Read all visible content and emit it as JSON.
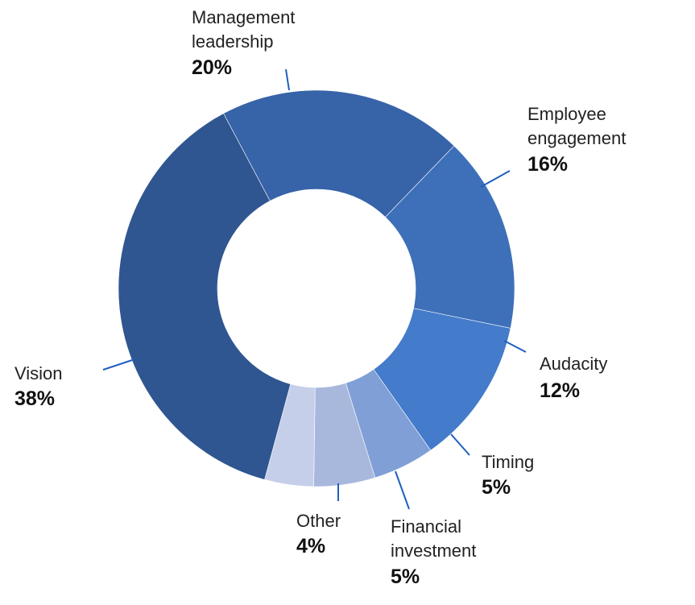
{
  "chart_data": {
    "type": "pie",
    "donut": true,
    "title": "",
    "legend": "none",
    "slices": [
      {
        "label_lines": [
          "Management",
          "leadership"
        ],
        "value": 20,
        "value_label": "20%",
        "color": "#3763a8"
      },
      {
        "label_lines": [
          "Employee",
          "engagement"
        ],
        "value": 16,
        "value_label": "16%",
        "color": "#3d70b8"
      },
      {
        "label_lines": [
          "Audacity"
        ],
        "value": 12,
        "value_label": "12%",
        "color": "#447bca"
      },
      {
        "label_lines": [
          "Timing"
        ],
        "value": 5,
        "value_label": "5%",
        "color": "#7f9fd6"
      },
      {
        "label_lines": [
          "Financial",
          "investment"
        ],
        "value": 5,
        "value_label": "5%",
        "color": "#a8b8dd"
      },
      {
        "label_lines": [
          "Other"
        ],
        "value": 4,
        "value_label": "4%",
        "color": "#c5cfe9"
      },
      {
        "label_lines": [
          "Vision"
        ],
        "value": 38,
        "value_label": "38%",
        "color": "#2f5690"
      }
    ]
  }
}
